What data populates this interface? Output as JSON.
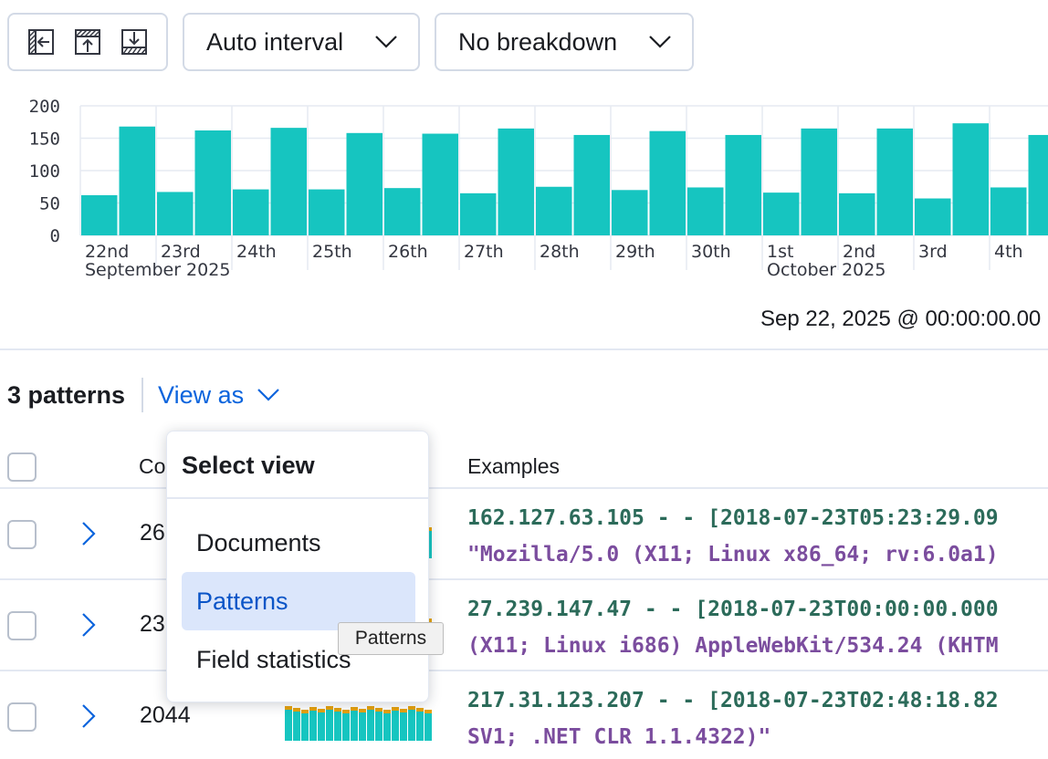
{
  "toolbar": {
    "icons": [
      "collapse-left-icon",
      "upload-icon",
      "download-icon"
    ],
    "interval_dropdown": "Auto interval",
    "breakdown_dropdown": "No breakdown"
  },
  "chart_data": {
    "type": "bar",
    "title": "",
    "xlabel": "",
    "ylabel": "",
    "ylim": [
      0,
      200
    ],
    "yticks": [
      200,
      150,
      100,
      50,
      0
    ],
    "day_labels": [
      "22nd",
      "23rd",
      "24th",
      "25th",
      "26th",
      "27th",
      "28th",
      "29th",
      "30th",
      "1st",
      "2nd",
      "3rd",
      "4th"
    ],
    "month_labels": [
      "September 2025",
      "October 2025"
    ],
    "values": [
      62,
      168,
      67,
      162,
      71,
      166,
      71,
      158,
      73,
      157,
      65,
      165,
      75,
      155,
      70,
      161,
      74,
      155,
      66,
      165,
      65,
      165,
      57,
      173,
      74,
      155
    ],
    "color": "#16c5c0",
    "grid": true
  },
  "time_range": "Sep 22, 2025 @ 00:00:00.00",
  "patterns_header": {
    "count_label": "3 patterns",
    "view_as": "View as"
  },
  "table": {
    "col_count": "Co",
    "col_examples": "Examples",
    "rows": [
      {
        "count": "26",
        "line1": "162.127.63.105 - - [2018-07-23T05:23:29.09",
        "line2": "\"Mozilla/5.0 (X11; Linux x86_64; rv:6.0a1)"
      },
      {
        "count": "23",
        "line1": "27.239.147.47 - - [2018-07-23T00:00:00.000",
        "line2": "(X11; Linux i686) AppleWebKit/534.24 (KHTM"
      },
      {
        "count": "2044",
        "line1": "217.31.123.207 - - [2018-07-23T02:48:18.82",
        "line2": "SV1; .NET CLR 1.1.4322)\""
      }
    ]
  },
  "popover": {
    "title": "Select view",
    "items": [
      "Documents",
      "Patterns",
      "Field statistics"
    ],
    "selected": "Patterns"
  },
  "tooltip": "Patterns",
  "colors": {
    "accent": "#0b64dd",
    "bar": "#16c5c0",
    "bar_secondary": "#e5a20b"
  }
}
